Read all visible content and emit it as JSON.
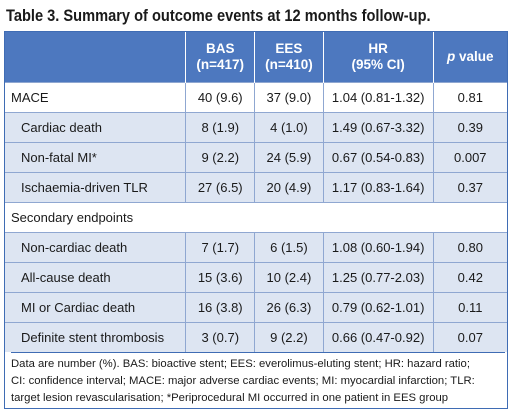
{
  "title": "Table 3. Summary of outcome events at 12 months follow-up.",
  "columns": {
    "bas_line1": "BAS",
    "bas_line2": "(n=417)",
    "ees_line1": "EES",
    "ees_line2": "(n=410)",
    "hr_line1": "HR",
    "hr_line2": "(95% CI)",
    "p_italic": "p",
    "p_rest": " value"
  },
  "rows": [
    {
      "label": "MACE",
      "bas": "40 (9.6)",
      "ees": "37 (9.0)",
      "hr": "1.04 (0.81-1.32)",
      "p": "0.81"
    },
    {
      "label": "Cardiac death",
      "bas": "8 (1.9)",
      "ees": "4 (1.0)",
      "hr": "1.49 (0.67-3.32)",
      "p": "0.39"
    },
    {
      "label": "Non-fatal MI*",
      "bas": "9 (2.2)",
      "ees": "24 (5.9)",
      "hr": "0.67 (0.54-0.83)",
      "p": "0.007"
    },
    {
      "label": "Ischaemia-driven TLR",
      "bas": "27 (6.5)",
      "ees": "20 (4.9)",
      "hr": "1.17 (0.83-1.64)",
      "p": "0.37"
    },
    {
      "label": "Secondary endpoints"
    },
    {
      "label": "Non-cardiac death",
      "bas": "7 (1.7)",
      "ees": "6 (1.5)",
      "hr": "1.08 (0.60-1.94)",
      "p": "0.80"
    },
    {
      "label": "All-cause death",
      "bas": "15 (3.6)",
      "ees": "10 (2.4)",
      "hr": "1.25 (0.77-2.03)",
      "p": "0.42"
    },
    {
      "label": "MI or Cardiac death",
      "bas": "16 (3.8)",
      "ees": "26 (6.3)",
      "hr": "0.79 (0.62-1.01)",
      "p": "0.11"
    },
    {
      "label": "Definite stent thrombosis",
      "bas": "3 (0.7)",
      "ees": "9 (2.2)",
      "hr": "0.66 (0.47-0.92)",
      "p": "0.07"
    }
  ],
  "footnote": {
    "line1": "Data are number (%). BAS: bioactive stent; EES: everolimus-eluting stent; HR: hazard ratio;",
    "line2": "CI: confidence interval; MACE: major adverse cardiac events; MI: myocardial infarction; TLR:",
    "line3": "target lesion revascularisation; *Periprocedural MI occurred in one patient in EES group"
  }
}
